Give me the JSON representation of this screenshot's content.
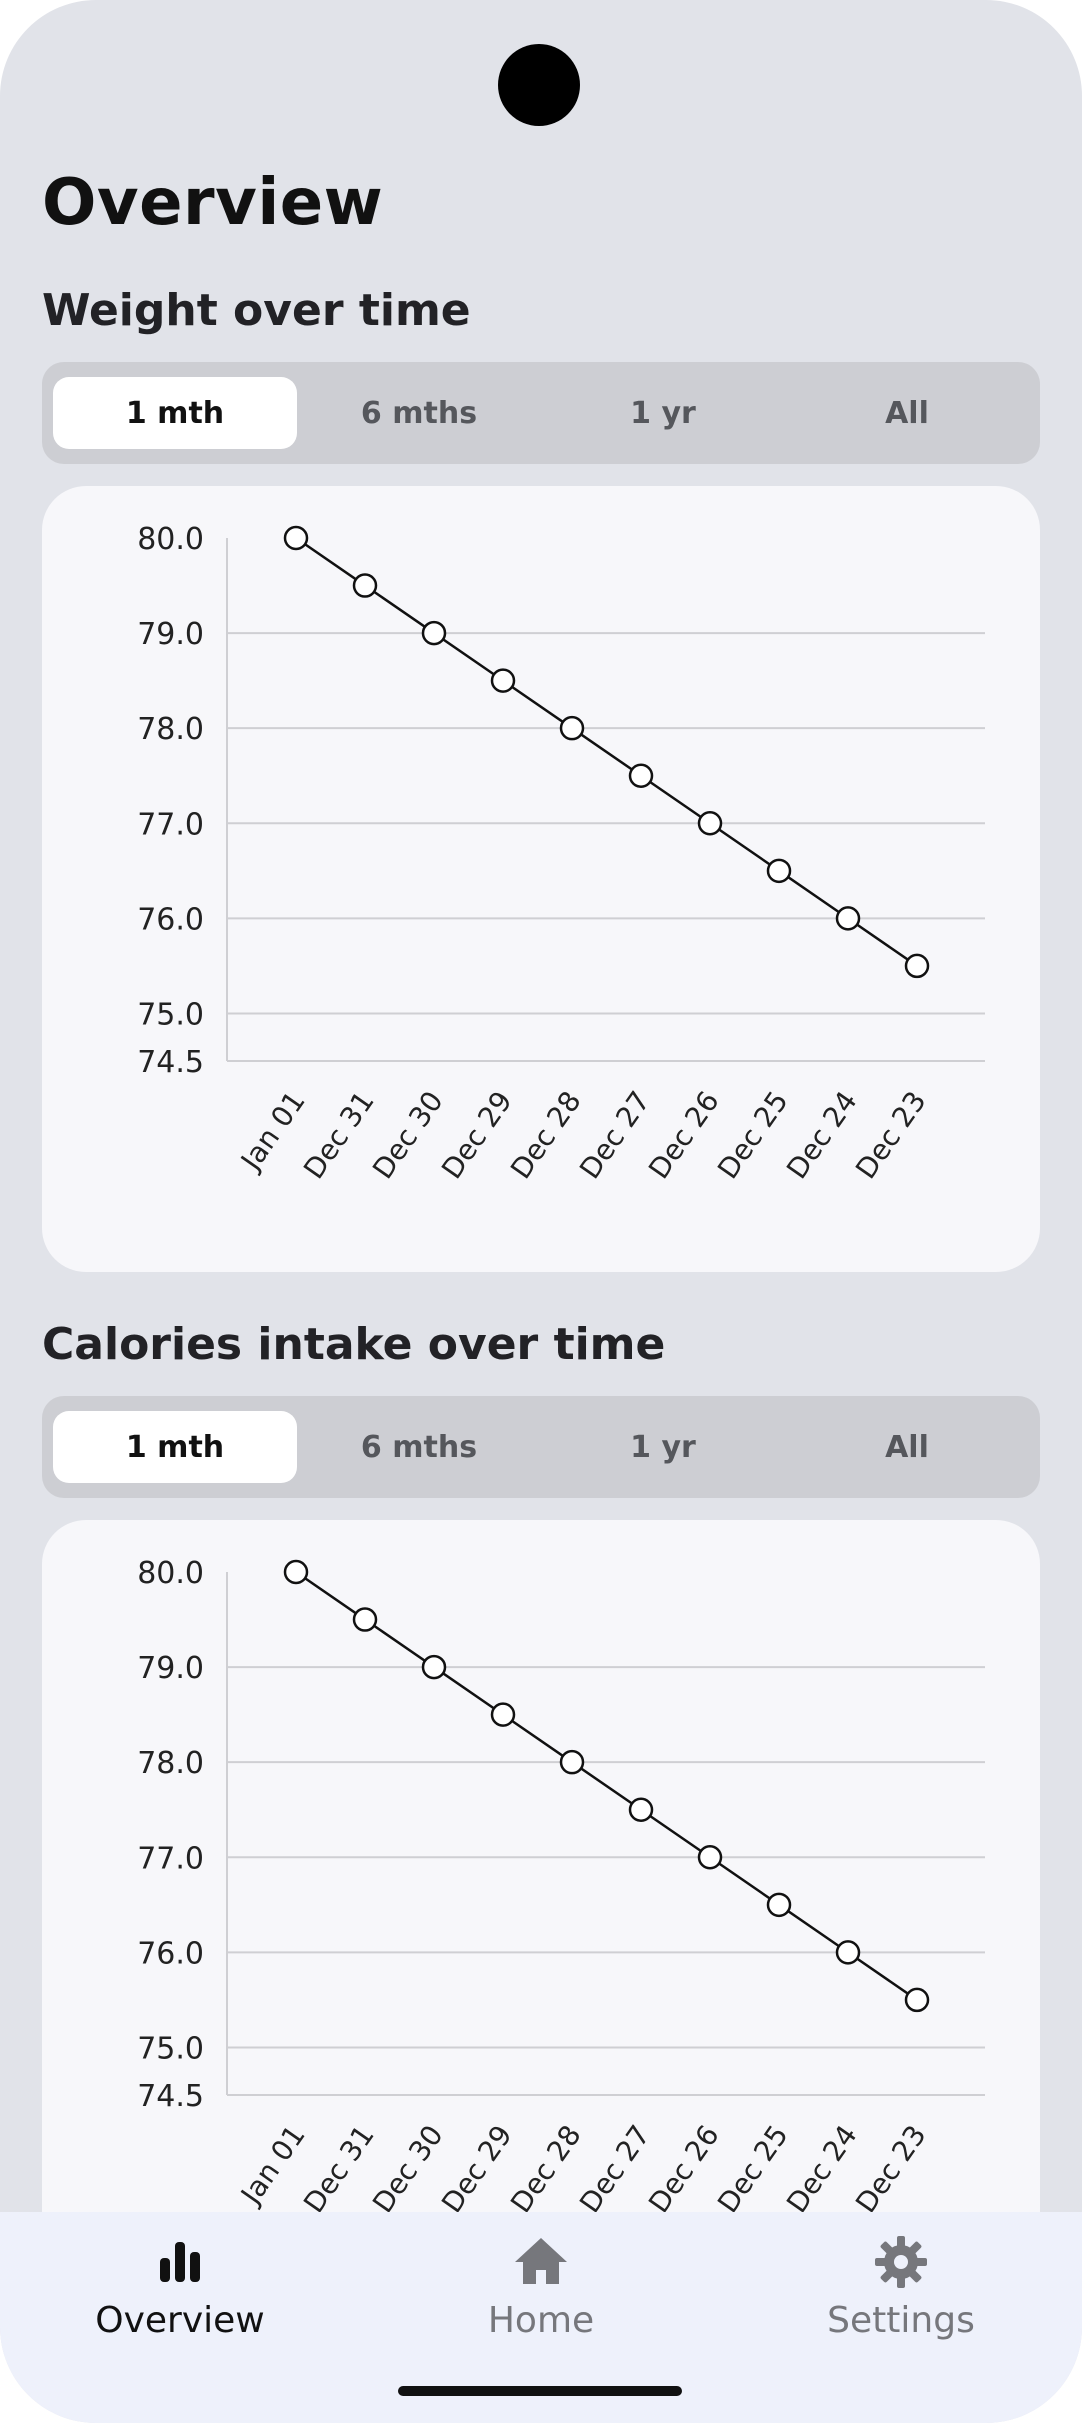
{
  "page": {
    "title": "Overview"
  },
  "weight_section": {
    "title": "Weight over time",
    "range_options": [
      "1 mth",
      "6 mths",
      "1 yr",
      "All"
    ],
    "selected_range": "1 mth"
  },
  "calories_section": {
    "title": "Calories intake over time",
    "range_options": [
      "1 mth",
      "6 mths",
      "1 yr",
      "All"
    ],
    "selected_range": "1 mth"
  },
  "chart_data": [
    {
      "type": "line",
      "categories": [
        "Jan 01",
        "Dec 31",
        "Dec 30",
        "Dec 29",
        "Dec 28",
        "Dec 27",
        "Dec 26",
        "Dec 25",
        "Dec 24",
        "Dec 23"
      ],
      "values": [
        80.0,
        79.5,
        79.0,
        78.5,
        78.0,
        77.5,
        77.0,
        76.5,
        76.0,
        75.5
      ],
      "yticks": [
        "80.0",
        "79.0",
        "78.0",
        "77.0",
        "76.0",
        "75.0",
        "74.5"
      ],
      "ylim": [
        74.5,
        80.0
      ],
      "grid": true,
      "title": "",
      "xlabel": "",
      "ylabel": ""
    },
    {
      "type": "line",
      "categories": [
        "Jan 01",
        "Dec 31",
        "Dec 30",
        "Dec 29",
        "Dec 28",
        "Dec 27",
        "Dec 26",
        "Dec 25",
        "Dec 24",
        "Dec 23"
      ],
      "values": [
        80.0,
        79.5,
        79.0,
        78.5,
        78.0,
        77.5,
        77.0,
        76.5,
        76.0,
        75.5
      ],
      "yticks": [
        "80.0",
        "79.0",
        "78.0",
        "77.0",
        "76.0",
        "75.0",
        "74.5"
      ],
      "ylim": [
        74.5,
        80.0
      ],
      "grid": true,
      "title": "",
      "xlabel": "",
      "ylabel": ""
    }
  ],
  "bottom_nav": {
    "items": [
      {
        "label": "Overview",
        "icon": "bar-chart-icon",
        "active": true
      },
      {
        "label": "Home",
        "icon": "home-icon",
        "active": false
      },
      {
        "label": "Settings",
        "icon": "gear-icon",
        "active": false
      }
    ]
  },
  "colors": {
    "background": "#e1e3e9",
    "card": "#f7f7fa",
    "segment_track": "#cdced3",
    "nav_background": "#eef1fb",
    "line": "#111111"
  }
}
